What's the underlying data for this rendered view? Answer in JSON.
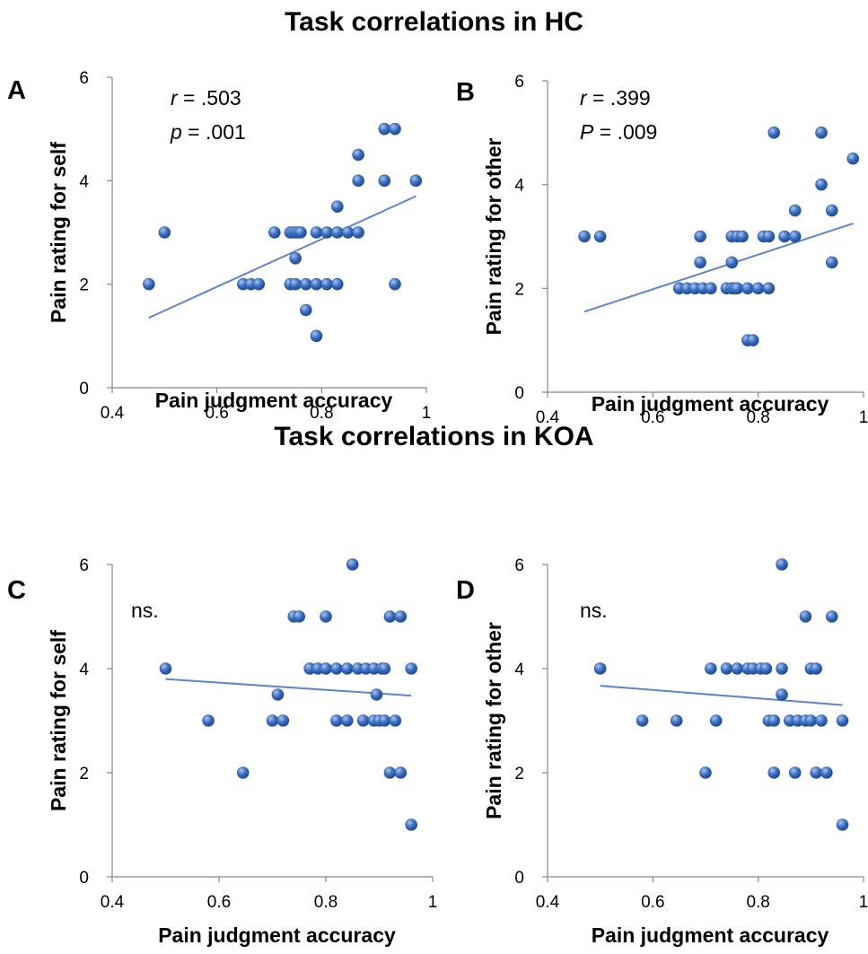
{
  "titles": {
    "hc": "Task correlations in HC",
    "koa": "Task correlations in KOA"
  },
  "colors": {
    "point": "#3b6fc2",
    "trend": "#5b86c8"
  },
  "chart_data": [
    {
      "panel": "A",
      "type": "scatter",
      "xlabel": "Pain judgment accuracy",
      "ylabel": "Pain rating for self",
      "xlim": [
        0.4,
        1
      ],
      "ylim": [
        0,
        6
      ],
      "xticks": [
        "0.4",
        "0.6",
        "0.8",
        "1"
      ],
      "yticks": [
        "0",
        "2",
        "4",
        "6"
      ],
      "stats": [
        {
          "var": "r",
          "value": " = .503"
        },
        {
          "var": "p",
          "value": " = .001"
        }
      ],
      "trend": {
        "x": [
          0.47,
          0.98
        ],
        "y": [
          1.35,
          3.7
        ]
      },
      "points": [
        [
          0.47,
          2
        ],
        [
          0.5,
          3
        ],
        [
          0.65,
          2
        ],
        [
          0.665,
          2
        ],
        [
          0.68,
          2
        ],
        [
          0.71,
          3
        ],
        [
          0.74,
          3
        ],
        [
          0.745,
          3
        ],
        [
          0.75,
          3
        ],
        [
          0.755,
          3
        ],
        [
          0.76,
          3
        ],
        [
          0.75,
          2.5
        ],
        [
          0.74,
          2
        ],
        [
          0.75,
          2
        ],
        [
          0.77,
          2
        ],
        [
          0.79,
          2
        ],
        [
          0.81,
          2
        ],
        [
          0.83,
          2
        ],
        [
          0.77,
          1.5
        ],
        [
          0.79,
          1
        ],
        [
          0.79,
          3
        ],
        [
          0.81,
          3
        ],
        [
          0.83,
          3
        ],
        [
          0.85,
          3
        ],
        [
          0.87,
          3
        ],
        [
          0.83,
          3.5
        ],
        [
          0.87,
          4
        ],
        [
          0.87,
          4.5
        ],
        [
          0.92,
          4
        ],
        [
          0.92,
          5
        ],
        [
          0.94,
          5
        ],
        [
          0.98,
          4
        ],
        [
          0.94,
          2
        ]
      ]
    },
    {
      "panel": "B",
      "type": "scatter",
      "xlabel": "Pain judgment accuracy",
      "ylabel": "Pain rating for other",
      "xlim": [
        0.4,
        1
      ],
      "ylim": [
        0,
        6
      ],
      "xticks": [
        "0.4",
        "0.6",
        "0.8",
        "1"
      ],
      "yticks": [
        "0",
        "2",
        "4",
        "6"
      ],
      "stats": [
        {
          "var": "r",
          "value": " = .399"
        },
        {
          "var": "P",
          "value": " = .009"
        }
      ],
      "trend": {
        "x": [
          0.47,
          0.98
        ],
        "y": [
          1.55,
          3.25
        ]
      },
      "points": [
        [
          0.47,
          3
        ],
        [
          0.5,
          3
        ],
        [
          0.69,
          3
        ],
        [
          0.69,
          2.5
        ],
        [
          0.75,
          3
        ],
        [
          0.76,
          3
        ],
        [
          0.77,
          3
        ],
        [
          0.75,
          2.5
        ],
        [
          0.65,
          2
        ],
        [
          0.665,
          2
        ],
        [
          0.68,
          2
        ],
        [
          0.695,
          2
        ],
        [
          0.71,
          2
        ],
        [
          0.74,
          2
        ],
        [
          0.75,
          2
        ],
        [
          0.755,
          2
        ],
        [
          0.76,
          2
        ],
        [
          0.78,
          2
        ],
        [
          0.8,
          2
        ],
        [
          0.82,
          2
        ],
        [
          0.78,
          1
        ],
        [
          0.79,
          1
        ],
        [
          0.81,
          3
        ],
        [
          0.82,
          3
        ],
        [
          0.85,
          3
        ],
        [
          0.87,
          3
        ],
        [
          0.87,
          3.5
        ],
        [
          0.83,
          5
        ],
        [
          0.92,
          5
        ],
        [
          0.92,
          4
        ],
        [
          0.94,
          3.5
        ],
        [
          0.94,
          2.5
        ],
        [
          0.98,
          4.5
        ]
      ]
    },
    {
      "panel": "C",
      "type": "scatter",
      "xlabel": "Pain judgment accuracy",
      "ylabel": "Pain rating for self",
      "xlim": [
        0.4,
        1
      ],
      "ylim": [
        0,
        6
      ],
      "xticks": [
        "0.4",
        "0.6",
        "0.8",
        "1"
      ],
      "yticks": [
        "0",
        "2",
        "4",
        "6"
      ],
      "stats": [
        {
          "var": "",
          "value": "ns."
        }
      ],
      "trend": {
        "x": [
          0.5,
          0.96
        ],
        "y": [
          3.8,
          3.48
        ]
      },
      "points": [
        [
          0.5,
          4
        ],
        [
          0.58,
          3
        ],
        [
          0.645,
          2
        ],
        [
          0.7,
          3
        ],
        [
          0.71,
          3.5
        ],
        [
          0.72,
          3
        ],
        [
          0.74,
          5
        ],
        [
          0.75,
          5
        ],
        [
          0.8,
          5
        ],
        [
          0.85,
          6
        ],
        [
          0.77,
          4
        ],
        [
          0.785,
          4
        ],
        [
          0.8,
          4
        ],
        [
          0.82,
          4
        ],
        [
          0.84,
          4
        ],
        [
          0.86,
          4
        ],
        [
          0.875,
          4
        ],
        [
          0.89,
          4
        ],
        [
          0.905,
          4
        ],
        [
          0.91,
          4
        ],
        [
          0.96,
          4
        ],
        [
          0.82,
          3
        ],
        [
          0.84,
          3
        ],
        [
          0.87,
          3
        ],
        [
          0.89,
          3
        ],
        [
          0.9,
          3
        ],
        [
          0.91,
          3
        ],
        [
          0.93,
          3
        ],
        [
          0.895,
          3.5
        ],
        [
          0.92,
          5
        ],
        [
          0.94,
          5
        ],
        [
          0.92,
          2
        ],
        [
          0.94,
          2
        ],
        [
          0.96,
          1
        ]
      ]
    },
    {
      "panel": "D",
      "type": "scatter",
      "xlabel": "Pain judgment accuracy",
      "ylabel": "Pain rating for other",
      "xlim": [
        0.4,
        1
      ],
      "ylim": [
        0,
        6
      ],
      "xticks": [
        "0.4",
        "0.6",
        "0.8",
        "1"
      ],
      "yticks": [
        "0",
        "2",
        "4",
        "6"
      ],
      "stats": [
        {
          "var": "",
          "value": "ns."
        }
      ],
      "trend": {
        "x": [
          0.5,
          0.96
        ],
        "y": [
          3.67,
          3.3
        ]
      },
      "points": [
        [
          0.5,
          4
        ],
        [
          0.58,
          3
        ],
        [
          0.645,
          3
        ],
        [
          0.7,
          2
        ],
        [
          0.72,
          3
        ],
        [
          0.71,
          4
        ],
        [
          0.74,
          4
        ],
        [
          0.76,
          4
        ],
        [
          0.78,
          4
        ],
        [
          0.79,
          4
        ],
        [
          0.805,
          4
        ],
        [
          0.815,
          4
        ],
        [
          0.845,
          4
        ],
        [
          0.9,
          4
        ],
        [
          0.91,
          4
        ],
        [
          0.845,
          6
        ],
        [
          0.89,
          5
        ],
        [
          0.94,
          5
        ],
        [
          0.845,
          3.5
        ],
        [
          0.82,
          3
        ],
        [
          0.83,
          3
        ],
        [
          0.86,
          3
        ],
        [
          0.875,
          3
        ],
        [
          0.89,
          3
        ],
        [
          0.9,
          3
        ],
        [
          0.92,
          3
        ],
        [
          0.96,
          3
        ],
        [
          0.83,
          2
        ],
        [
          0.87,
          2
        ],
        [
          0.91,
          2
        ],
        [
          0.93,
          2
        ],
        [
          0.96,
          1
        ]
      ]
    }
  ]
}
